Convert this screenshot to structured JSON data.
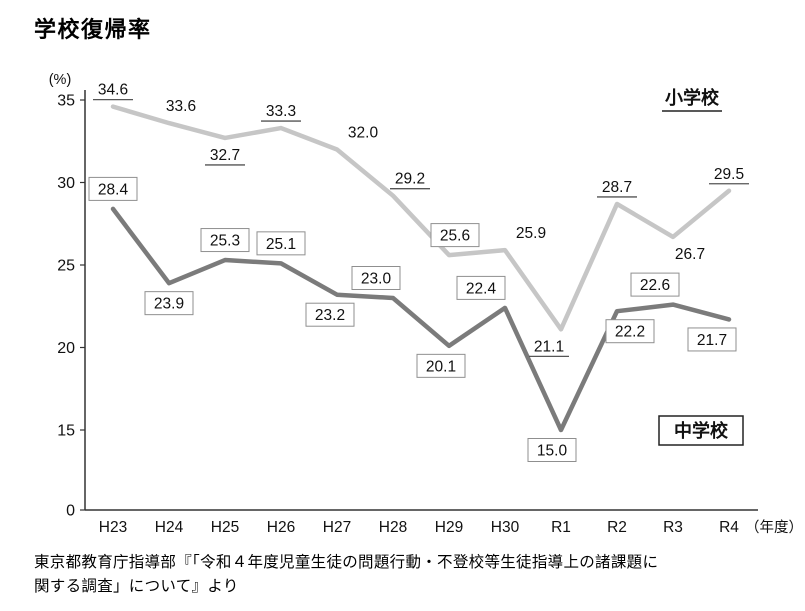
{
  "page": {
    "title": "学校復帰率",
    "source_line1": "東京都教育庁指導部『「令和４年度児童生徒の問題行動・不登校等生徒指導上の諸課題に",
    "source_line2": "関する調査」について』より"
  },
  "chart_data": {
    "type": "line",
    "title": "学校復帰率",
    "y_unit": "(%)",
    "x_unit": "（年度）",
    "y_ticks": [
      35,
      30,
      25,
      20,
      15,
      0
    ],
    "axis_note": "y axis compressed between 0 and 15",
    "grid": false,
    "categories": [
      "H23",
      "H24",
      "H25",
      "H26",
      "H27",
      "H28",
      "H29",
      "H30",
      "R1",
      "R2",
      "R3",
      "R4"
    ],
    "series": [
      {
        "id": "elementary",
        "name": "小学校",
        "color": "#c6c6c6",
        "values": [
          34.6,
          33.6,
          32.7,
          33.3,
          32.0,
          29.2,
          25.6,
          25.9,
          21.1,
          28.7,
          26.7,
          29.5
        ],
        "label_pos": [
          "above",
          "above",
          "below",
          "above",
          "above",
          "above",
          "above",
          "above",
          "below",
          "above",
          "below",
          "above"
        ],
        "label_style": [
          "underline",
          "plain",
          "underline",
          "underline",
          "plain",
          "underline",
          "box",
          "plain",
          "underline",
          "underline",
          "plain",
          "underline"
        ],
        "label_dx": [
          0,
          12,
          0,
          0,
          26,
          17,
          6,
          26,
          -12,
          0,
          17,
          0
        ]
      },
      {
        "id": "junior-high",
        "name": "中学校",
        "color": "#7b7b7b",
        "values": [
          28.4,
          23.9,
          25.3,
          25.1,
          23.2,
          23.0,
          20.1,
          22.4,
          15.0,
          22.2,
          22.6,
          21.7
        ],
        "label_pos": [
          "above",
          "below",
          "above",
          "above",
          "below",
          "above",
          "below",
          "above",
          "below",
          "below",
          "above",
          "below"
        ],
        "label_style": [
          "box",
          "box",
          "box",
          "box",
          "box",
          "box",
          "box",
          "box",
          "box",
          "box",
          "box",
          "box"
        ],
        "label_dx": [
          0,
          0,
          0,
          0,
          -7,
          -17,
          -8,
          -24,
          -9,
          13,
          -18,
          -17
        ]
      }
    ],
    "annotations": {
      "elementary": {
        "text": "小学校",
        "style": "underline"
      },
      "junior_high": {
        "text": "中学校",
        "style": "box"
      }
    }
  }
}
